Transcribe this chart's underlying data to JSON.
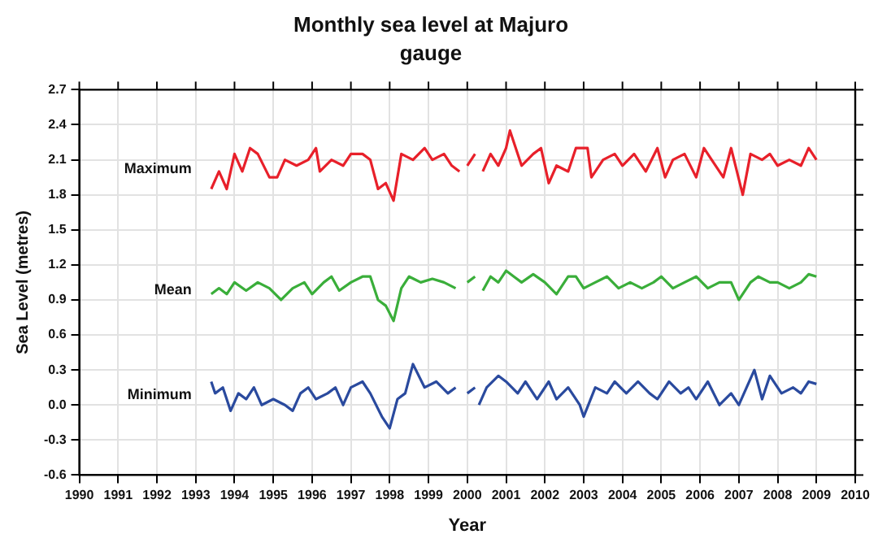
{
  "chart_data": {
    "type": "line",
    "title": "Monthly sea level at Majuro",
    "subtitle": "gauge",
    "xlabel": "Year",
    "ylabel": "Sea Level (metres)",
    "xlim": [
      1990,
      2010
    ],
    "xticks": [
      1990,
      1991,
      1992,
      1993,
      1994,
      1995,
      1996,
      1997,
      1998,
      1999,
      2000,
      2001,
      2002,
      2003,
      2004,
      2005,
      2006,
      2007,
      2008,
      2009,
      2010
    ],
    "ylim": [
      -0.6,
      2.7
    ],
    "yticks": [
      -0.6,
      -0.3,
      {
        "value": 0,
        "label": "0.0"
      },
      0.3,
      0.6,
      0.9,
      1.2,
      1.5,
      1.8,
      2.1,
      2.4,
      2.7
    ],
    "grid": true,
    "legend": false,
    "marker": "none",
    "line_style": "solid",
    "series": [
      {
        "name": "Maximum",
        "color": "#e8202a",
        "x": [
          1993.4,
          1993.6,
          1993.8,
          1994.0,
          1994.2,
          1994.4,
          1994.6,
          1994.9,
          1995.1,
          1995.3,
          1995.6,
          1995.9,
          1996.1,
          1996.2,
          1996.5,
          1996.8,
          1997.0,
          1997.3,
          1997.5,
          1997.7,
          1997.9,
          1998.1,
          1998.3,
          1998.6,
          1998.9,
          1999.1,
          1999.4,
          1999.6,
          1999.8,
          1999.9,
          2000.0,
          2000.2,
          2000.3,
          2000.4,
          2000.6,
          2000.8,
          2001.0,
          2001.1,
          2001.4,
          2001.7,
          2001.9,
          2002.1,
          2002.3,
          2002.6,
          2002.8,
          2003.1,
          2003.2,
          2003.5,
          2003.8,
          2004.0,
          2004.3,
          2004.6,
          2004.9,
          2005.1,
          2005.3,
          2005.6,
          2005.9,
          2006.1,
          2006.3,
          2006.6,
          2006.8,
          2007.1,
          2007.3,
          2007.6,
          2007.8,
          2008.0,
          2008.3,
          2008.6,
          2008.8,
          2009.0
        ],
        "values": [
          1.85,
          2.0,
          1.85,
          2.15,
          2.0,
          2.2,
          2.15,
          1.95,
          1.95,
          2.1,
          2.05,
          2.1,
          2.2,
          2.0,
          2.1,
          2.05,
          2.15,
          2.15,
          2.1,
          1.85,
          1.9,
          1.75,
          2.15,
          2.1,
          2.2,
          2.1,
          2.15,
          2.05,
          2.0,
          null,
          2.05,
          2.15,
          null,
          2.0,
          2.15,
          2.05,
          2.2,
          2.35,
          2.05,
          2.15,
          2.2,
          1.9,
          2.05,
          2.0,
          2.2,
          2.2,
          1.95,
          2.1,
          2.15,
          2.05,
          2.15,
          2.0,
          2.2,
          1.95,
          2.1,
          2.15,
          1.95,
          2.2,
          2.1,
          1.95,
          2.2,
          1.8,
          2.15,
          2.1,
          2.15,
          2.05,
          2.1,
          2.05,
          2.2,
          2.1
        ]
      },
      {
        "name": "Mean",
        "color": "#3aae3a",
        "x": [
          1993.4,
          1993.6,
          1993.8,
          1994.0,
          1994.3,
          1994.6,
          1994.9,
          1995.2,
          1995.5,
          1995.8,
          1996.0,
          1996.3,
          1996.5,
          1996.7,
          1997.0,
          1997.3,
          1997.5,
          1997.7,
          1997.9,
          1998.1,
          1998.3,
          1998.5,
          1998.8,
          1999.1,
          1999.4,
          1999.7,
          1999.85,
          2000.0,
          2000.2,
          2000.3,
          2000.4,
          2000.6,
          2000.8,
          2001.0,
          2001.2,
          2001.4,
          2001.7,
          2002.0,
          2002.3,
          2002.6,
          2002.8,
          2003.0,
          2003.3,
          2003.6,
          2003.9,
          2004.2,
          2004.5,
          2004.8,
          2005.0,
          2005.3,
          2005.6,
          2005.9,
          2006.2,
          2006.5,
          2006.8,
          2007.0,
          2007.3,
          2007.5,
          2007.8,
          2008.0,
          2008.3,
          2008.6,
          2008.8,
          2009.0
        ],
        "values": [
          0.95,
          1.0,
          0.95,
          1.05,
          0.98,
          1.05,
          1.0,
          0.9,
          1.0,
          1.05,
          0.95,
          1.05,
          1.1,
          0.98,
          1.05,
          1.1,
          1.1,
          0.9,
          0.85,
          0.72,
          1.0,
          1.1,
          1.05,
          1.08,
          1.05,
          1.0,
          null,
          1.05,
          1.1,
          null,
          0.98,
          1.1,
          1.05,
          1.15,
          1.1,
          1.05,
          1.12,
          1.05,
          0.95,
          1.1,
          1.1,
          1.0,
          1.05,
          1.1,
          1.0,
          1.05,
          1.0,
          1.05,
          1.1,
          1.0,
          1.05,
          1.1,
          1.0,
          1.05,
          1.05,
          0.9,
          1.05,
          1.1,
          1.05,
          1.05,
          1.0,
          1.05,
          1.12,
          1.1
        ]
      },
      {
        "name": "Minimum",
        "color": "#2a4a9e",
        "x": [
          1993.4,
          1993.5,
          1993.7,
          1993.9,
          1994.1,
          1994.3,
          1994.5,
          1994.7,
          1995.0,
          1995.3,
          1995.5,
          1995.7,
          1995.9,
          1996.1,
          1996.4,
          1996.6,
          1996.8,
          1997.0,
          1997.3,
          1997.5,
          1997.8,
          1998.0,
          1998.2,
          1998.4,
          1998.6,
          1998.9,
          1999.2,
          1999.5,
          1999.7,
          1999.85,
          2000.0,
          2000.2,
          2000.25,
          2000.3,
          2000.5,
          2000.8,
          2001.0,
          2001.3,
          2001.5,
          2001.8,
          2002.1,
          2002.3,
          2002.6,
          2002.9,
          2003.0,
          2003.3,
          2003.6,
          2003.8,
          2004.1,
          2004.4,
          2004.7,
          2004.9,
          2005.2,
          2005.5,
          2005.7,
          2005.9,
          2006.2,
          2006.5,
          2006.8,
          2007.0,
          2007.2,
          2007.4,
          2007.6,
          2007.8,
          2008.1,
          2008.4,
          2008.6,
          2008.8,
          2009.0
        ],
        "values": [
          0.2,
          0.1,
          0.15,
          -0.05,
          0.1,
          0.05,
          0.15,
          0.0,
          0.05,
          0.0,
          -0.05,
          0.1,
          0.15,
          0.05,
          0.1,
          0.15,
          0.0,
          0.15,
          0.2,
          0.1,
          -0.1,
          -0.2,
          0.05,
          0.1,
          0.35,
          0.15,
          0.2,
          0.1,
          0.15,
          null,
          0.1,
          0.15,
          null,
          0.0,
          0.15,
          0.25,
          0.2,
          0.1,
          0.2,
          0.05,
          0.2,
          0.05,
          0.15,
          0.0,
          -0.1,
          0.15,
          0.1,
          0.2,
          0.1,
          0.2,
          0.1,
          0.05,
          0.2,
          0.1,
          0.15,
          0.05,
          0.2,
          0.0,
          0.1,
          0.0,
          0.15,
          0.3,
          0.05,
          0.25,
          0.1,
          0.15,
          0.1,
          0.2,
          0.18
        ]
      }
    ]
  }
}
